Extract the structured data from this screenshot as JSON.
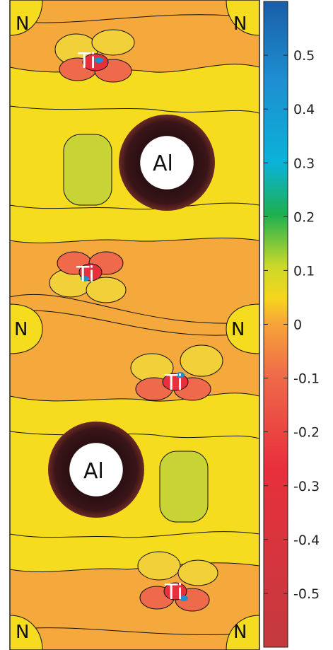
{
  "chart_data": {
    "type": "heatmap",
    "title": "",
    "xlabel": "",
    "ylabel": "",
    "colorbar": {
      "range": [
        -0.6,
        0.6
      ],
      "ticks": [
        "0.5",
        "0.4",
        "0.3",
        "0.2",
        "0.1",
        "0",
        "-0.1",
        "-0.2",
        "-0.3",
        "-0.4",
        "-0.5"
      ],
      "tick_values": [
        0.5,
        0.4,
        0.3,
        0.2,
        0.1,
        0,
        -0.1,
        -0.2,
        -0.3,
        -0.4,
        -0.5
      ],
      "colormap": [
        {
          "v": -0.6,
          "color": "#c33a3f"
        },
        {
          "v": -0.35,
          "color": "#e8303c"
        },
        {
          "v": -0.1,
          "color": "#ef6a4a"
        },
        {
          "v": 0.0,
          "color": "#f6a339"
        },
        {
          "v": 0.07,
          "color": "#f6d51c"
        },
        {
          "v": 0.13,
          "color": "#cbd92a"
        },
        {
          "v": 0.2,
          "color": "#1db050"
        },
        {
          "v": 0.3,
          "color": "#0ab2d8"
        },
        {
          "v": 0.45,
          "color": "#1e8ed0"
        },
        {
          "v": 0.6,
          "color": "#1a5ea8"
        }
      ]
    },
    "atoms": [
      {
        "label": "N"
      },
      {
        "label": "N"
      },
      {
        "label": "Ti"
      },
      {
        "label": "Al"
      },
      {
        "label": "Ti"
      },
      {
        "label": "N"
      },
      {
        "label": "N"
      },
      {
        "label": "Ti"
      },
      {
        "label": "Al"
      },
      {
        "label": "Ti"
      },
      {
        "label": "N"
      },
      {
        "label": "N"
      }
    ]
  },
  "colors": {
    "background_level": "#f5a83c",
    "inner_level": "#f6dc1e",
    "deep_level": "#c8d336",
    "contour_line": "#111111"
  }
}
